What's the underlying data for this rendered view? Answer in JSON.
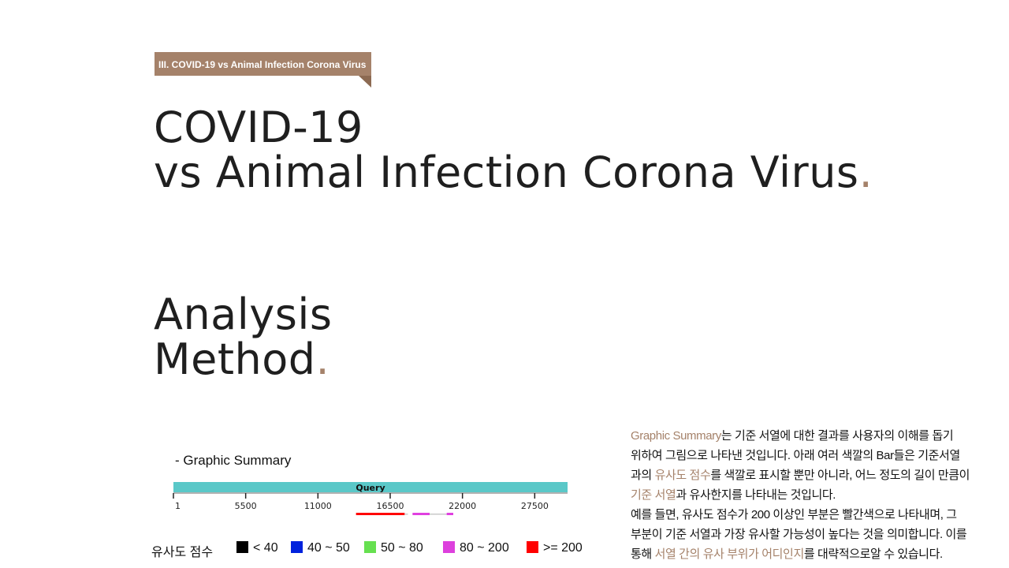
{
  "tag": {
    "label": "III. COVID-19 vs Animal Infection Corona Virus",
    "color": "#a5826a"
  },
  "title": {
    "line1": "COVID-19",
    "line2": "vs Animal Infection Corona Virus",
    "dot": "."
  },
  "section": {
    "line1": "Analysis",
    "line2": "Method",
    "dot": "."
  },
  "graphic_summary": {
    "label": "- Graphic Summary",
    "query_label": "Query",
    "query_color": "#5ac8c8",
    "axis_ticks": [
      {
        "label": "1",
        "value": 1
      },
      {
        "label": "5500",
        "value": 5500
      },
      {
        "label": "11000",
        "value": 11000
      },
      {
        "label": "16500",
        "value": 16500
      },
      {
        "label": "22000",
        "value": 22000
      },
      {
        "label": "27500",
        "value": 27500
      }
    ],
    "query_range": [
      1,
      30000
    ],
    "hits": [
      {
        "start": 13900,
        "end": 17600,
        "category": ">= 200",
        "color": "#ff0000"
      },
      {
        "start": 17600,
        "end": 17850,
        "category": "gap",
        "color": "#c8c8c8"
      },
      {
        "start": 18200,
        "end": 19500,
        "category": "80 ~ 200",
        "color": "#e040e0"
      },
      {
        "start": 19500,
        "end": 20800,
        "category": "gap",
        "color": "#c8c8c8"
      },
      {
        "start": 20800,
        "end": 21300,
        "category": "80 ~ 200",
        "color": "#e040e0"
      }
    ]
  },
  "legend": {
    "title": "유사도 점수",
    "items": [
      {
        "label": "< 40",
        "color": "#000000"
      },
      {
        "label": "40 ~ 50",
        "color": "#0022dd"
      },
      {
        "label": "50 ~ 80",
        "color": "#66e050"
      },
      {
        "label": "80 ~ 200",
        "color": "#dd40dd"
      },
      {
        "label": ">= 200",
        "color": "#ff0000"
      }
    ]
  },
  "description": {
    "l1a": "Graphic Summary",
    "l1b": "는  기준 서열에 대한 결과를  사용자의 이해를 돕기",
    "l2": "위하여 그림으로 나타낸 것입니다. 아래 여러 색깔의 Bar들은 기준서열",
    "l3a": "과의 ",
    "l3b": "유사도 점수",
    "l3c": "를 색깔로 표시할 뿐만 아니라, 어느 정도의 길이 만큼이",
    "l4a": "기준 서열",
    "l4b": "과 유사한지를  나타내는 것입니다.",
    "l5": "예를 들면, 유사도 점수가 200 이상인 부분은 빨간색으로  나타내며, 그",
    "l6": "부분이 기준 서열과 가장 유사할 가능성이 높다는 것을 의미합니다. 이를",
    "l7a": "통해 ",
    "l7b": "서열 간의 유사 부위가 어디인지",
    "l7c": "를 대략적으로알 수 있습니다."
  }
}
